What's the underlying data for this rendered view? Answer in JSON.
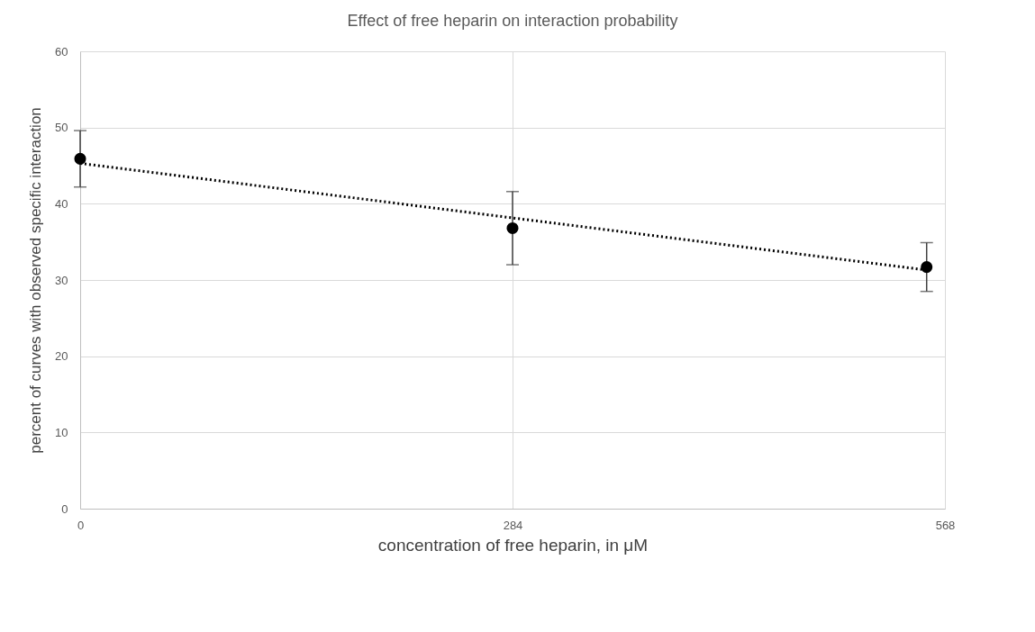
{
  "chart_data": {
    "type": "scatter",
    "title": "Effect of free heparin on interaction probability",
    "xlabel": "concentration of free heparin, in μM",
    "ylabel": "percent of curves with observed specific interaction",
    "xlim": [
      0,
      568
    ],
    "xticks": [
      0,
      284,
      568
    ],
    "ylim": [
      0,
      60
    ],
    "yticks": [
      0,
      10,
      20,
      30,
      40,
      50,
      60
    ],
    "grid": true,
    "marker": "circle",
    "series": [
      {
        "color": "#000000",
        "x": [
          0,
          284,
          556
        ],
        "values": [
          45.9,
          36.8,
          31.7
        ],
        "errors": [
          3.7,
          4.8,
          3.2
        ]
      },
      {
        "type": "line",
        "color": "#000000",
        "x": [
          0,
          556
        ],
        "values": [
          45.3,
          31.3
        ],
        "line_style": "dotted",
        "marker": "none"
      }
    ]
  }
}
